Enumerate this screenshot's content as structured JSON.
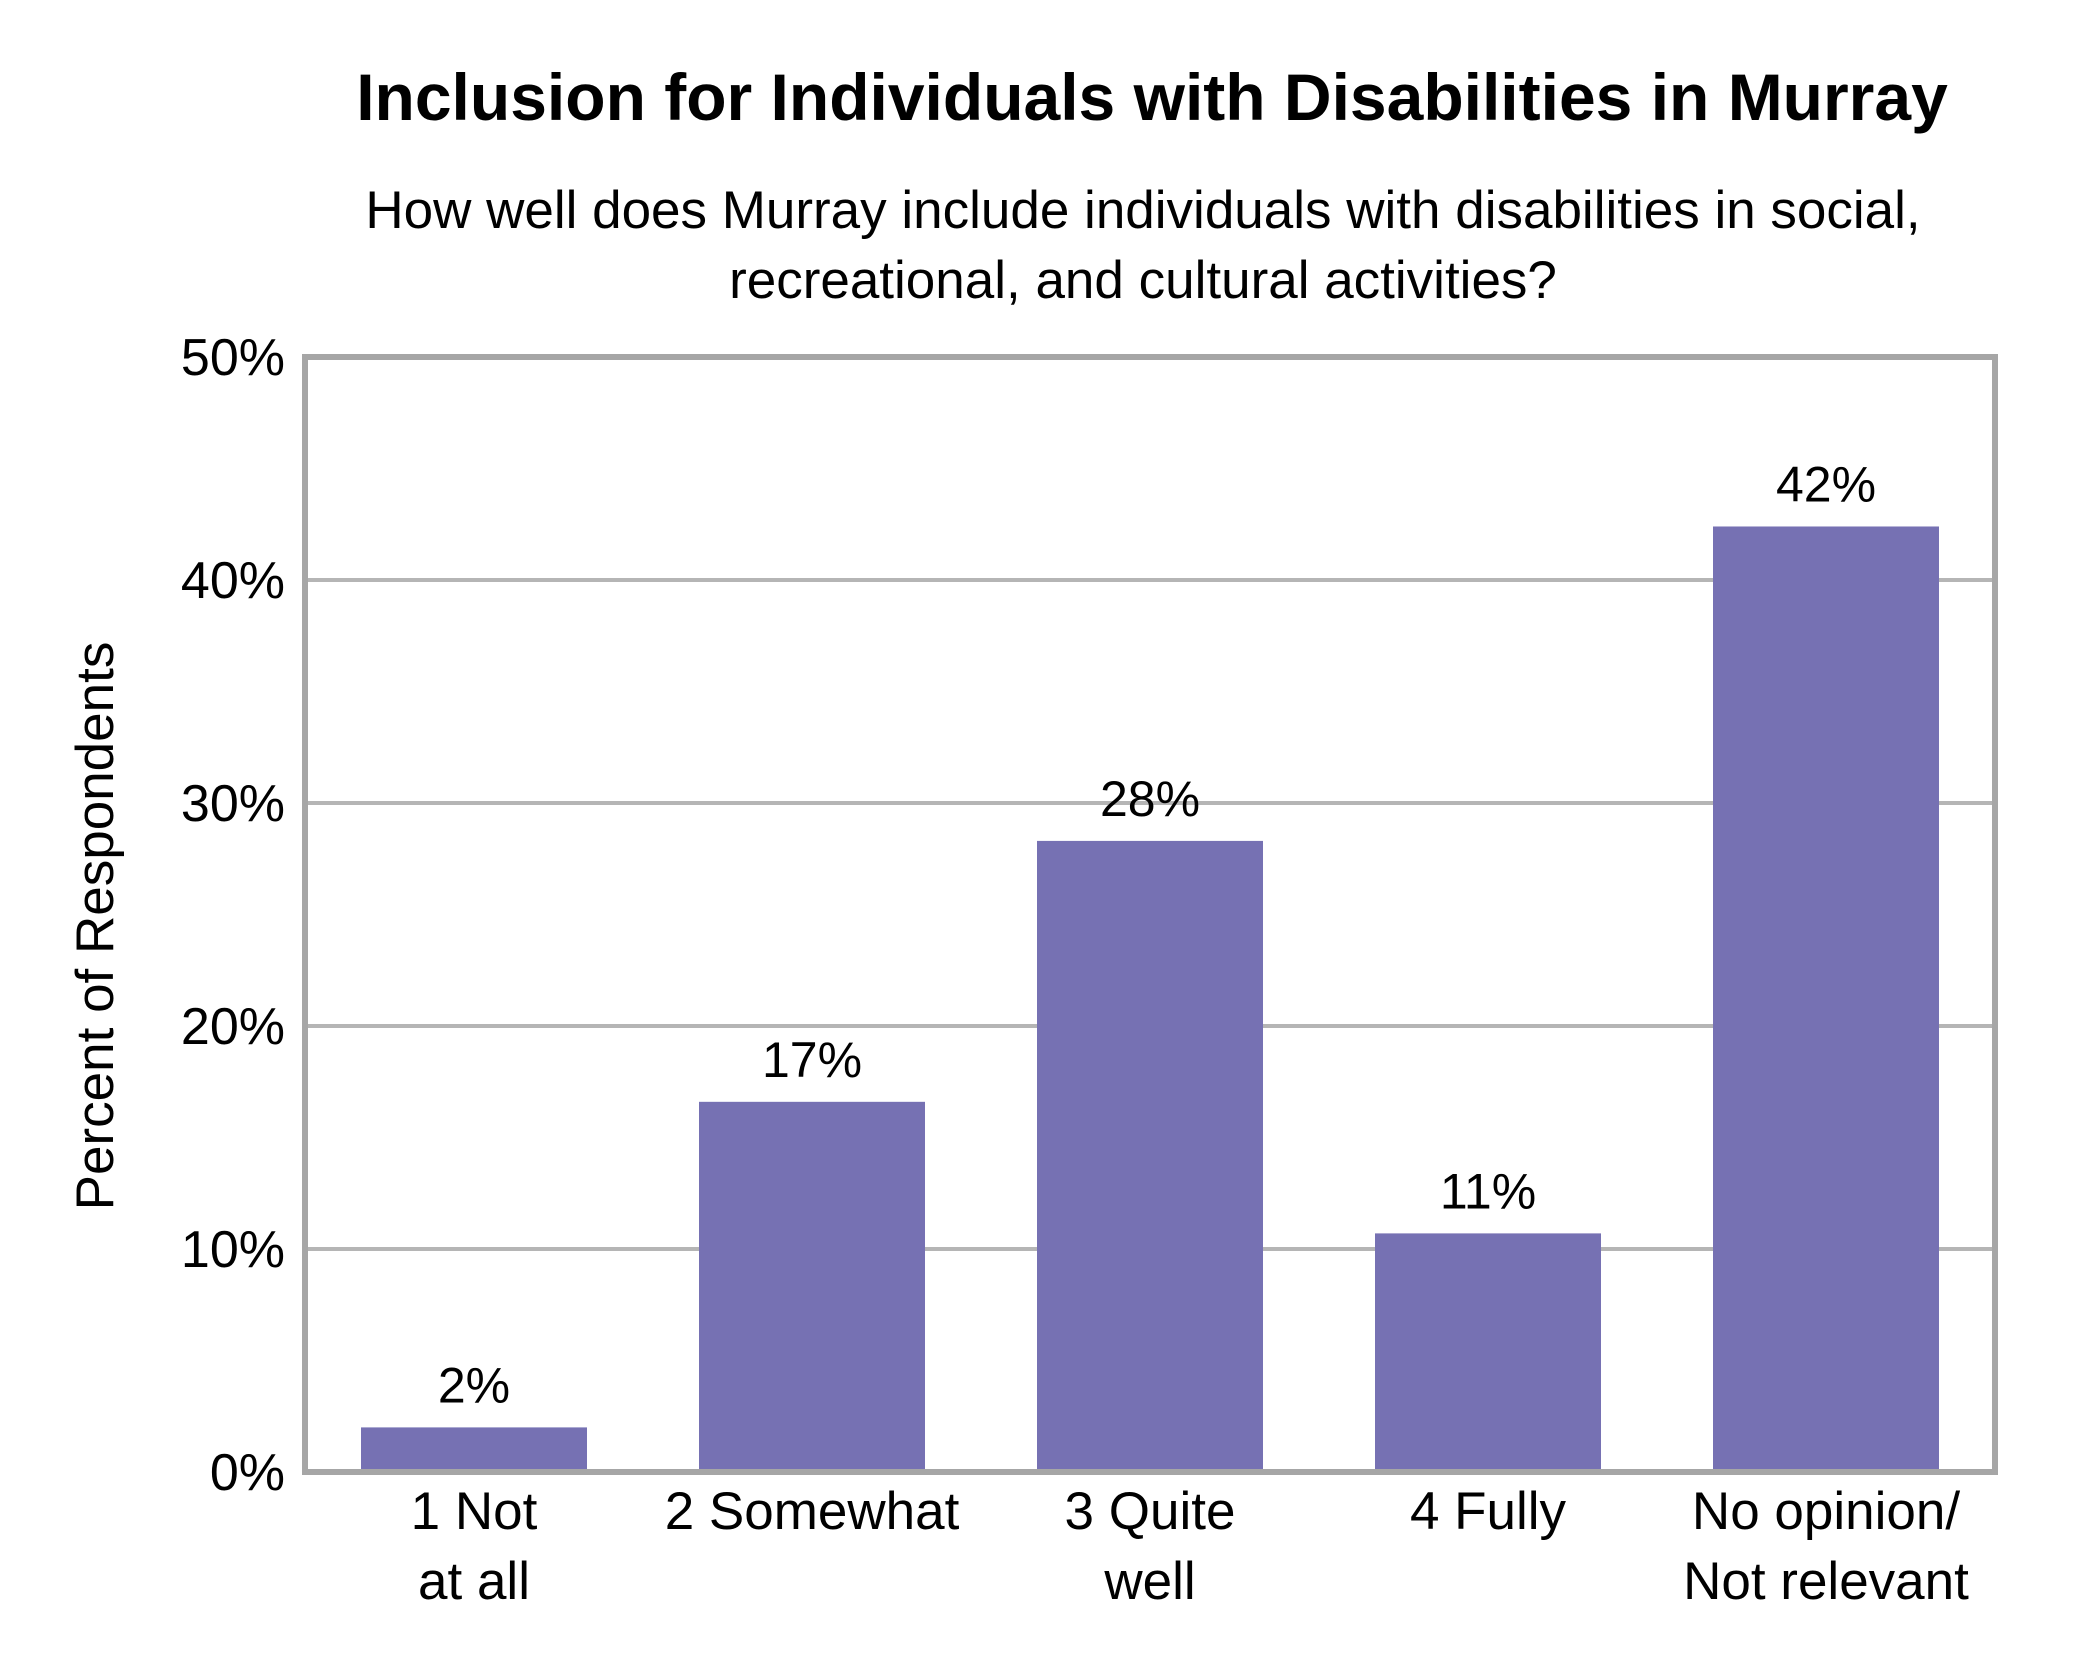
{
  "chart_data": {
    "type": "bar",
    "title": "Inclusion for Individuals with Disabilities in Murray",
    "subtitle": [
      "How well does Murray include individuals with disabilities in social,",
      "recreational, and cultural activities?"
    ],
    "ylabel": "Percent of Respondents",
    "xlabel": "",
    "categories": [
      [
        "1 Not",
        "at all"
      ],
      [
        "2 Somewhat"
      ],
      [
        "3 Quite",
        "well"
      ],
      [
        "4 Fully"
      ],
      [
        "No opinion/",
        "Not relevant"
      ]
    ],
    "values": [
      2,
      16.6,
      28.3,
      10.7,
      42.4
    ],
    "data_labels": [
      "2%",
      "17%",
      "28%",
      "11%",
      "42%"
    ],
    "ylim": [
      0,
      50
    ],
    "yticks": [
      0,
      10,
      20,
      30,
      40,
      50
    ],
    "ytick_labels": [
      "0%",
      "10%",
      "20%",
      "30%",
      "40%",
      "50%"
    ],
    "grid": true,
    "legend": "none",
    "colors": {
      "bar": "#7671b3",
      "grid": "#b5b5b5",
      "frame": "#a6a6a6"
    }
  }
}
